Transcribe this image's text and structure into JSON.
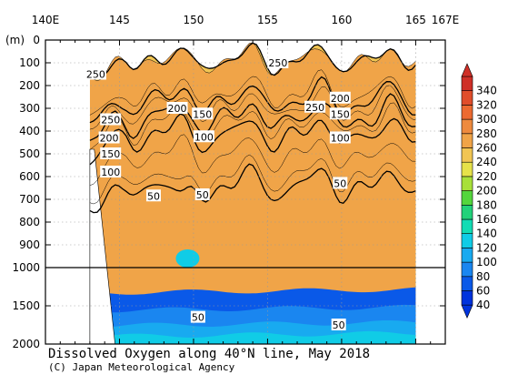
{
  "chart_data": {
    "type": "heatmap",
    "title": "Dissolved Oxygen along 40°N line, May 2018",
    "credit": "(C) Japan Meteorological Agency",
    "y_unit_label": "(m)",
    "x_ticks": [
      "140E",
      "145",
      "150",
      "155",
      "160",
      "165",
      "167E"
    ],
    "x_tick_values": [
      140,
      145,
      150,
      155,
      160,
      165,
      167
    ],
    "xlim": [
      140,
      167
    ],
    "y_ticks_upper": [
      "0",
      "100",
      "200",
      "300",
      "400",
      "500",
      "600",
      "700",
      "800",
      "900",
      "1000"
    ],
    "y_ticks_lower": [
      "1500",
      "2000"
    ],
    "ylim_upper": [
      0,
      1000
    ],
    "ylim_lower": [
      1000,
      2000
    ],
    "data_extent_lon": [
      143,
      165
    ],
    "colorbar": {
      "levels": [
        "40",
        "60",
        "80",
        "100",
        "120",
        "140",
        "160",
        "180",
        "200",
        "220",
        "240",
        "260",
        "280",
        "300",
        "320",
        "340"
      ],
      "colors": [
        "#0033dd",
        "#0a59e8",
        "#1a86f0",
        "#18aaf0",
        "#10cce6",
        "#12dcb4",
        "#22d27a",
        "#54d63c",
        "#a8e03a",
        "#e6e24a",
        "#f1c553",
        "#f0a448",
        "#ee8a3e",
        "#ec6a30",
        "#e04d2a",
        "#cf2f27"
      ]
    },
    "bands": [
      {
        "level": 40,
        "color": "#0033dd"
      },
      {
        "level": 50,
        "color": "#0a59e8"
      },
      {
        "level": 60,
        "color": "#1a86f0"
      },
      {
        "level": 80,
        "color": "#18aaf0"
      },
      {
        "level": 100,
        "color": "#10cce6"
      },
      {
        "level": 130,
        "color": "#12dcb4"
      },
      {
        "level": 150,
        "color": "#22d27a"
      },
      {
        "level": 180,
        "color": "#54d63c"
      },
      {
        "level": 200,
        "color": "#a8e03a"
      },
      {
        "level": 220,
        "color": "#e6e24a"
      },
      {
        "level": 250,
        "color": "#f1c553"
      },
      {
        "level": 270,
        "color": "#f0a448"
      }
    ],
    "contour_labels": [
      {
        "text": "250",
        "lon": 143.4,
        "depth": 150
      },
      {
        "text": "250",
        "lon": 155.7,
        "depth": 100
      },
      {
        "text": "250",
        "lon": 144.4,
        "depth": 350
      },
      {
        "text": "250",
        "lon": 158.2,
        "depth": 295
      },
      {
        "text": "200",
        "lon": 148.9,
        "depth": 300
      },
      {
        "text": "200",
        "lon": 159.9,
        "depth": 255
      },
      {
        "text": "200",
        "lon": 144.3,
        "depth": 430
      },
      {
        "text": "150",
        "lon": 150.6,
        "depth": 325
      },
      {
        "text": "150",
        "lon": 159.9,
        "depth": 325
      },
      {
        "text": "150",
        "lon": 144.4,
        "depth": 500
      },
      {
        "text": "100",
        "lon": 150.7,
        "depth": 425
      },
      {
        "text": "100",
        "lon": 159.9,
        "depth": 430
      },
      {
        "text": "100",
        "lon": 144.4,
        "depth": 580
      },
      {
        "text": "50",
        "lon": 147.3,
        "depth": 685
      },
      {
        "text": "50",
        "lon": 150.6,
        "depth": 680
      },
      {
        "text": "50",
        "lon": 159.9,
        "depth": 630
      },
      {
        "text": "50",
        "lon": 150.3,
        "depth": 1650
      },
      {
        "text": "50",
        "lon": 159.8,
        "depth": 1750
      }
    ]
  }
}
